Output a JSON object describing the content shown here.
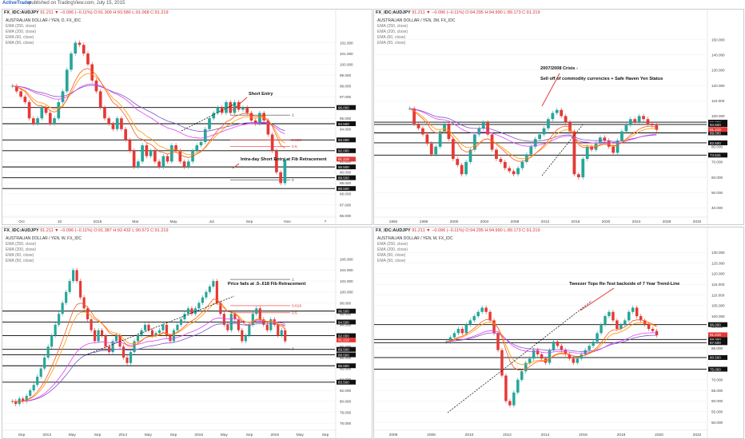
{
  "header": {
    "brand": "ActiveTrader",
    "published": "published on TradingView.com, July 15, 2015"
  },
  "panels": [
    {
      "symbol": "FX_IDC:AUDJPY",
      "quote": "91.211 ▼ −0.096 (−0.11%) O:91.309 H:93.580 L:91.068 C:91.219",
      "subtitle": "AUSTRALIAN DOLLAR / YEN, D, FX_IDC",
      "emas": [
        "EMA (250, close)",
        "EMA (200, close)",
        "EMA (60, close)",
        "EMA (50, close)"
      ]
    },
    {
      "symbol": "FX_IDC:AUDJPY",
      "quote": "91.211 ▼ −0.096 (−0.11%) O:94.295 H:94.990 L:89.173 C:91.219",
      "subtitle": "AUSTRALIAN DOLLAR / YEN, 3M, FX_IDC",
      "emas": [
        "EMA (250, close)",
        "EMA (200, close)",
        "EMA (60, close)",
        "EMA (50, close)"
      ]
    },
    {
      "symbol": "FX_IDC:AUDJPY",
      "quote": "91.211 ▼ −0.096 (−0.11%) O:91.387 H:92.432 L:90.572 C:91.219",
      "subtitle": "AUSTRALIAN DOLLAR / YEN, W, FX_IDC",
      "emas": [
        "EMA (250, close)",
        "EMA (200, close)",
        "EMA (60, close)",
        "EMA (50, close)"
      ]
    },
    {
      "symbol": "FX_IDC:AUDJPY",
      "quote": "91.211 ▼ −0.096 (−0.11%) O:94.295 H:94.990 L:89.173 C:91.219",
      "subtitle": "AUSTRALIAN DOLLAR / YEN, M, FX_IDC",
      "emas": [
        "EMA (250, close)",
        "EMA (200, close)",
        "EMA (60, close)",
        "EMA (50, close)"
      ]
    }
  ],
  "colors": {
    "up": "#26a69a",
    "down": "#e53935",
    "ema250": "#7e57c2",
    "ema200": "#e040fb",
    "ema60": "#ff9800",
    "ema50": "#ff5722",
    "level": "#000000",
    "fib": "#e53935",
    "trend": "#000000",
    "arrow": "#e53935",
    "price_box": "#e53935"
  },
  "chart_data": [
    {
      "type": "candlestick",
      "timeframe": "D",
      "ylim": [
        86,
        103
      ],
      "y_ticks": [
        "102.000",
        "101.000",
        "100.000",
        "99.000",
        "98.000",
        "97.000",
        "96.000",
        "95.000",
        "94.000",
        "93.000",
        "92.000",
        "91.000",
        "90.000",
        "89.000",
        "88.000",
        "87.000",
        "86.000"
      ],
      "x_ticks": [
        "Oct",
        "10",
        "2015",
        "Mar",
        "May",
        "Jul",
        "Sep",
        "Nov",
        "7"
      ],
      "levels": [
        96.0,
        94.5,
        93.0,
        92.0,
        90.5,
        89.5,
        88.5
      ],
      "current_price": "91.219",
      "fib_levels": [
        {
          "label": "1",
          "value": 95.3
        },
        {
          "label": "0.618",
          "value": 93.0
        },
        {
          "label": "0.5",
          "value": 92.4
        },
        {
          "label": "0",
          "value": 89.3
        }
      ],
      "annotations": [
        "Short Entry",
        "Intra-day Short Entry at Fib Retracement"
      ],
      "approx_closes": [
        98,
        97.5,
        97,
        96.5,
        95,
        94.5,
        95,
        96,
        95.5,
        94.5,
        95,
        96.5,
        97.5,
        99.5,
        101,
        102,
        101.8,
        101,
        100,
        98.5,
        97.5,
        96,
        95,
        94.5,
        94,
        95,
        94,
        93,
        92,
        90.5,
        91,
        92.5,
        91.5,
        92,
        91,
        90.5,
        91.5,
        91,
        92.5,
        92,
        91,
        90.5,
        91,
        92,
        92.5,
        92.8,
        94,
        95,
        95.5,
        96,
        95.5,
        96.5,
        95.5,
        96.5,
        95.8,
        96,
        95.5,
        94.8,
        94.5,
        95.5,
        94.8,
        93.5,
        92,
        90,
        89,
        91.2
      ]
    },
    {
      "type": "candlestick",
      "timeframe": "3M",
      "ylim": [
        35,
        155
      ],
      "y_ticks": [
        "150.000",
        "140.000",
        "130.000",
        "120.000",
        "110.000",
        "100.000",
        "90.000",
        "80.000",
        "70.000",
        "60.000",
        "50.000",
        "40.000"
      ],
      "x_ticks": [
        "1992",
        "1996",
        "2000",
        "2004",
        "2008",
        "2012",
        "2016",
        "2020",
        "2024",
        "2028",
        "2032"
      ],
      "levels": [
        96.0,
        94.5,
        89.0,
        82.5,
        74.5
      ],
      "level_labels": [
        "96.000",
        "94.500",
        "89.000",
        "82.500",
        "74.541"
      ],
      "current_price": "91.219",
      "annotations": [
        "2007/2008 Crisis -",
        "Sell off of commodity currencies + Safe Haven Yen Status"
      ],
      "approx_closes": [
        105,
        95,
        92,
        88,
        82,
        75,
        80,
        90,
        95,
        85,
        72,
        68,
        62,
        70,
        78,
        88,
        92,
        96,
        88,
        78,
        72,
        70,
        66,
        64,
        62,
        66,
        70,
        75,
        80,
        85,
        88,
        92,
        98,
        102,
        104,
        100,
        96,
        90,
        62,
        60,
        72,
        80,
        78,
        82,
        86,
        84,
        80,
        76,
        84,
        90,
        94,
        98,
        96,
        100,
        98,
        95,
        94,
        91
      ]
    },
    {
      "type": "candlestick",
      "timeframe": "W",
      "ylim": [
        75,
        108
      ],
      "y_ticks": [
        "106.000",
        "104.000",
        "102.000",
        "100.000",
        "98.000",
        "96.000",
        "94.000",
        "92.000",
        "90.000",
        "88.000",
        "86.000",
        "84.000",
        "82.000",
        "80.000",
        "78.000",
        "76.000"
      ],
      "x_ticks": [
        "Sep",
        "2013",
        "May",
        "Sep",
        "2014",
        "May",
        "Sep",
        "2015",
        "May",
        "Sep",
        "2016",
        "May",
        "Sep"
      ],
      "levels": [
        96.5,
        94.5,
        92.0,
        89.5,
        88.5,
        86.5,
        83.5
      ],
      "current_price": "91.219",
      "fib_levels": [
        {
          "label": "1",
          "value": 102.3
        },
        {
          "label": "0.618",
          "value": 97.5
        },
        {
          "label": "0.5",
          "value": 96.2
        },
        {
          "label": "0",
          "value": 89.6
        }
      ],
      "annotations": [
        "Price fails at .5-.618 Fib Retracement"
      ],
      "approx_closes": [
        80,
        79.5,
        80.5,
        80,
        81,
        82,
        83,
        84.5,
        86,
        88,
        90,
        92,
        94,
        96,
        98,
        100,
        102,
        104,
        102,
        99,
        97,
        95,
        93,
        91,
        93,
        92,
        90,
        89,
        91,
        92,
        90,
        88,
        87,
        89,
        91,
        92,
        93,
        94,
        93,
        92,
        92.5,
        93,
        94,
        92,
        91,
        93,
        94,
        95,
        96,
        97,
        96,
        97,
        98,
        99,
        100,
        101,
        102,
        98,
        96,
        94,
        93,
        96,
        95,
        93,
        91,
        92,
        94,
        96,
        97,
        95,
        94,
        93,
        95,
        94,
        92,
        93,
        91
      ]
    },
    {
      "type": "candlestick",
      "timeframe": "M",
      "ylim": [
        47,
        132
      ],
      "y_ticks": [
        "130.000",
        "125.000",
        "120.000",
        "115.000",
        "110.000",
        "105.000",
        "100.000",
        "95.000",
        "90.000",
        "85.000",
        "80.000",
        "75.000",
        "70.000",
        "65.000",
        "60.000",
        "55.000",
        "50.000"
      ],
      "x_ticks": [
        "2006",
        "2008",
        "2010",
        "2012",
        "2014",
        "2016",
        "2018",
        "2020",
        "2022"
      ],
      "levels": [
        96.0,
        89.0,
        87.5,
        80.5,
        75.0
      ],
      "level_labels": [
        "96.000",
        "89.000",
        "87.500",
        "80.500",
        "75.000"
      ],
      "current_price": "91.219",
      "annotations": [
        "Tweezer Tops Re-Test backside of 7 Year Trend-Line"
      ],
      "approx_closes": [
        88,
        90,
        92,
        94,
        92,
        96,
        98,
        100,
        102,
        104,
        102,
        98,
        92,
        84,
        72,
        60,
        58,
        64,
        70,
        74,
        78,
        80,
        84,
        82,
        80,
        78,
        84,
        88,
        86,
        84,
        82,
        80,
        78,
        80,
        82,
        84,
        86,
        88,
        92,
        96,
        100,
        102,
        98,
        94,
        96,
        98,
        102,
        104,
        100,
        98,
        96,
        94,
        93,
        91
      ]
    }
  ]
}
